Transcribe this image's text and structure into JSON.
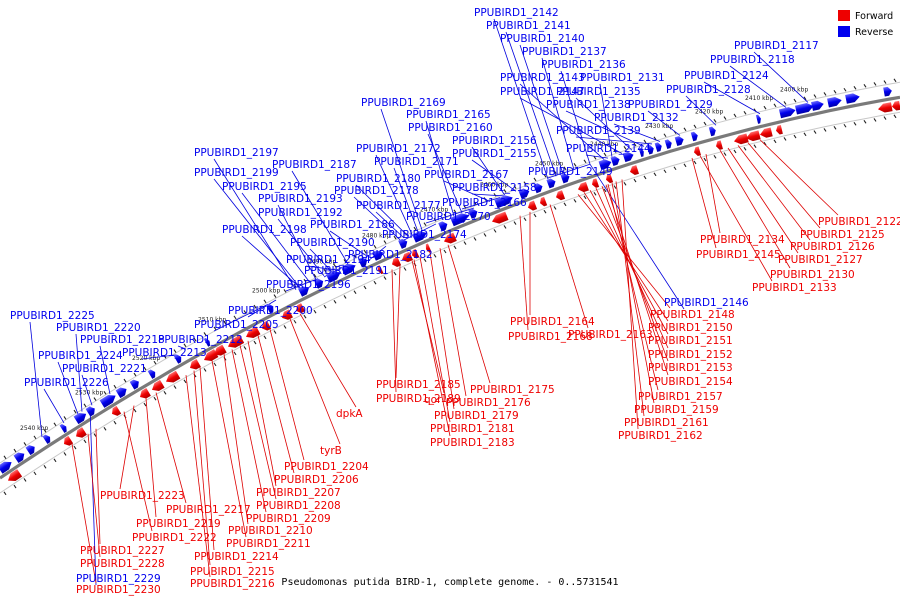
{
  "title": "Pseudomonas putida BIRD-1, complete genome. - 0..5731541",
  "legend": [
    {
      "label": "Forward",
      "color": "#ee0000"
    },
    {
      "label": "Reverse",
      "color": "#0000ee"
    }
  ],
  "colors": {
    "forward": "#ee0000",
    "reverse": "#0000ee",
    "forward_line": "#dd0000",
    "reverse_line": "#0000dd"
  },
  "ticks": [
    "2400 kbp",
    "2410 kbp",
    "2420 kbp",
    "2430 kbp",
    "2440 kbp",
    "2450 kbp",
    "2460 kbp",
    "2470 kbp",
    "2480 kbp",
    "2490 kbp",
    "2500 kbp",
    "2510 kbp",
    "2520 kbp",
    "2530 kbp",
    "2540 kbp"
  ],
  "reverse_labels": [
    "PPUBIRD1_2142",
    "PPUBIRD1_2141",
    "PPUBIRD1_2140",
    "PPUBIRD1_2137",
    "PPUBIRD1_2136",
    "PPUBIRD1_2143",
    "PPUBIRD1_2131",
    "PPUBIRD1_2147",
    "PPUBIRD1_2135",
    "PPUBIRD1_2138",
    "PPUBIRD1_2129",
    "PPUBIRD1_2132",
    "PPUBIRD1_2139",
    "PPUBIRD1_2144",
    "PPUBIRD1_2149",
    "PPUBIRD1_2117",
    "PPUBIRD1_2118",
    "PPUBIRD1_2124",
    "PPUBIRD1_2128",
    "PPUBIRD1_2169",
    "PPUBIRD1_2165",
    "PPUBIRD1_2160",
    "PPUBIRD1_2156",
    "PPUBIRD1_2155",
    "PPUBIRD1_2167",
    "PPUBIRD1_2158",
    "PPUBIRD1_2166",
    "PPUBIRD1_2170",
    "PPUBIRD1_2172",
    "PPUBIRD1_2171",
    "PPUBIRD1_2180",
    "PPUBIRD1_2178",
    "PPUBIRD1_2177",
    "PPUBIRD1_2186",
    "PPUBIRD1_2174",
    "PPUBIRD1_2182",
    "PPUBIRD1_2187",
    "PPUBIRD1_2197",
    "PPUBIRD1_2199",
    "PPUBIRD1_2195",
    "PPUBIRD1_2193",
    "PPUBIRD1_2192",
    "PPUBIRD1_2198",
    "PPUBIRD1_2190",
    "PPUBIRD1_2194",
    "PPUBIRD1_2191",
    "PPUBIRD1_2196",
    "PPUBIRD1_2200",
    "PPUBIRD1_2205",
    "PPUBIRD1_2212",
    "PPUBIRD1_2213",
    "PPUBIRD1_2225",
    "PPUBIRD1_2220",
    "PPUBIRD1_2218",
    "PPUBIRD1_2224",
    "PPUBIRD1_2221",
    "PPUBIRD1_2226",
    "PPUBIRD1_2146",
    "PPUBIRD1_2229"
  ],
  "forward_labels": [
    "PPUBIRD1_2122",
    "PPUBIRD1_2125",
    "PPUBIRD1_2126",
    "PPUBIRD1_2127",
    "PPUBIRD1_2130",
    "PPUBIRD1_2133",
    "PPUBIRD1_2134",
    "PPUBIRD1_2145",
    "PPUBIRD1_2148",
    "PPUBIRD1_2150",
    "PPUBIRD1_2151",
    "PPUBIRD1_2152",
    "PPUBIRD1_2153",
    "PPUBIRD1_2154",
    "PPUBIRD1_2157",
    "PPUBIRD1_2159",
    "PPUBIRD1_2161",
    "PPUBIRD1_2162",
    "PPUBIRD1_2164",
    "PPUBIRD1_2168",
    "PPUBIRD1_2163",
    "PPUBIRD1_2185",
    "PPUBIRD1_2189",
    "qor",
    "PPUBIRD1_2175",
    "PPUBIRD1_2176",
    "PPUBIRD1_2179",
    "PPUBIRD1_2181",
    "PPUBIRD1_2183",
    "dpkA",
    "tyrB",
    "PPUBIRD1_2204",
    "PPUBIRD1_2206",
    "PPUBIRD1_2207",
    "PPUBIRD1_2208",
    "PPUBIRD1_2209",
    "PPUBIRD1_2210",
    "PPUBIRD1_2211",
    "PPUBIRD1_2214",
    "PPUBIRD1_2215",
    "PPUBIRD1_2216",
    "PPUBIRD1_2223",
    "PPUBIRD1_2217",
    "PPUBIRD1_2219",
    "PPUBIRD1_2222",
    "PPUBIRD1_2227",
    "PPUBIRD1_2228",
    "PPUBIRD1_2230"
  ]
}
